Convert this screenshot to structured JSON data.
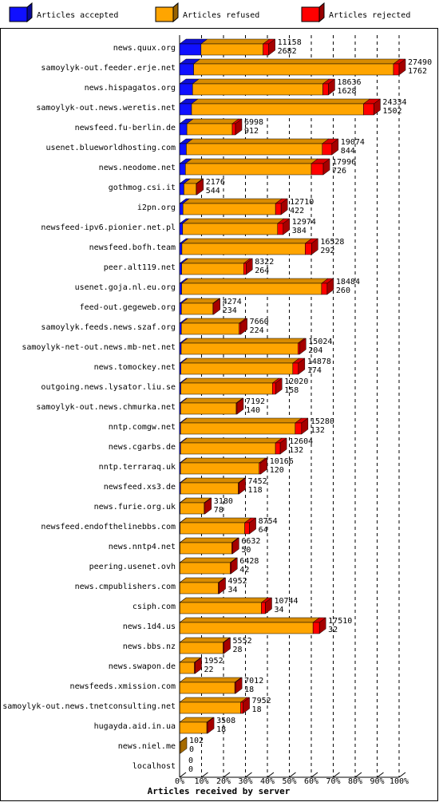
{
  "chart_data": {
    "type": "bar",
    "orientation": "horizontal",
    "stacked": true,
    "x_label": "Articles received by server",
    "categories": [
      "news.quux.org",
      "samoylyk-out.feeder.erje.net",
      "news.hispagatos.org",
      "samoylyk-out.news.weretis.net",
      "newsfeed.fu-berlin.de",
      "usenet.blueworldhosting.com",
      "news.neodome.net",
      "gothmog.csi.it",
      "i2pn.org",
      "newsfeed-ipv6.pionier.net.pl",
      "newsfeed.bofh.team",
      "peer.alt119.net",
      "usenet.goja.nl.eu.org",
      "feed-out.gegeweb.org",
      "samoylyk.feeds.news.szaf.org",
      "samoylyk-net-out.news.mb-net.net",
      "news.tomockey.net",
      "outgoing.news.lysator.liu.se",
      "samoylyk-out.news.chmurka.net",
      "nntp.comgw.net",
      "news.cgarbs.de",
      "nntp.terraraq.uk",
      "newsfeed.xs3.de",
      "news.furie.org.uk",
      "newsfeed.endofthelinebbs.com",
      "news.nntp4.net",
      "peering.usenet.ovh",
      "news.cmpublishers.com",
      "csiph.com",
      "news.1d4.us",
      "news.bbs.nz",
      "news.swapon.de",
      "newsfeeds.xmission.com",
      "samoylyk-out.news.tnetconsulting.net",
      "hugayda.aid.in.ua",
      "news.niel.me",
      "localhost"
    ],
    "totals": [
      11158,
      27490,
      18636,
      24334,
      6998,
      19074,
      17996,
      2176,
      12710,
      12974,
      16528,
      8322,
      18484,
      4274,
      7660,
      15024,
      14878,
      12020,
      7192,
      15280,
      12604,
      10166,
      7452,
      3180,
      8754,
      6632,
      6428,
      4952,
      10744,
      17510,
      5552,
      1952,
      7012,
      7952,
      3508,
      102,
      0
    ],
    "series": [
      {
        "name": "Articles accepted",
        "color": "#1010ff",
        "values": [
          2682,
          1762,
          1628,
          1502,
          912,
          844,
          726,
          544,
          422,
          384,
          292,
          264,
          260,
          234,
          224,
          204,
          174,
          158,
          140,
          132,
          132,
          120,
          118,
          78,
          64,
          50,
          42,
          34,
          34,
          32,
          28,
          22,
          18,
          18,
          18,
          0,
          0
        ]
      },
      {
        "name": "Articles refused",
        "color": "#ffa500",
        "values": [
          7776,
          25028,
          16308,
          21532,
          5686,
          17030,
          15770,
          1532,
          11588,
          11890,
          15436,
          7758,
          17524,
          3940,
          7236,
          14620,
          14004,
          11462,
          6952,
          14348,
          11872,
          9846,
          7234,
          3002,
          8090,
          6482,
          6286,
          4818,
          10210,
          16678,
          5424,
          1830,
          6894,
          7634,
          3390,
          102,
          0
        ]
      },
      {
        "name": "Articles rejected",
        "color": "#ff0000",
        "values": [
          700,
          700,
          700,
          1300,
          400,
          1200,
          1500,
          100,
          700,
          700,
          800,
          300,
          700,
          100,
          200,
          200,
          700,
          400,
          100,
          800,
          600,
          200,
          100,
          100,
          600,
          100,
          100,
          100,
          500,
          800,
          100,
          100,
          100,
          300,
          100,
          0,
          0
        ]
      }
    ],
    "xlim": [
      0,
      27490
    ],
    "xticks": [
      {
        "value": 0,
        "label": "0%"
      },
      {
        "value": 2749,
        "label": "10%"
      },
      {
        "value": 5498,
        "label": "20%"
      },
      {
        "value": 8247,
        "label": "30%"
      },
      {
        "value": 10996,
        "label": "40%"
      },
      {
        "value": 13745,
        "label": "50%"
      },
      {
        "value": 16494,
        "label": "60%"
      },
      {
        "value": 19243,
        "label": "70%"
      },
      {
        "value": 21992,
        "label": "80%"
      },
      {
        "value": 24741,
        "label": "90%"
      },
      {
        "value": 27490,
        "label": "100%"
      }
    ],
    "grid": true,
    "legend": "top"
  }
}
